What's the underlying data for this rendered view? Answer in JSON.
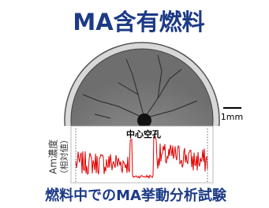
{
  "title": "MA含有燃料",
  "scale_label": "1mm",
  "annotation": "中心空孔",
  "y_label": [
    "Am濃度",
    "（相対値）"
  ],
  "caption": "燃料中でのMA挙動分析試験"
}
